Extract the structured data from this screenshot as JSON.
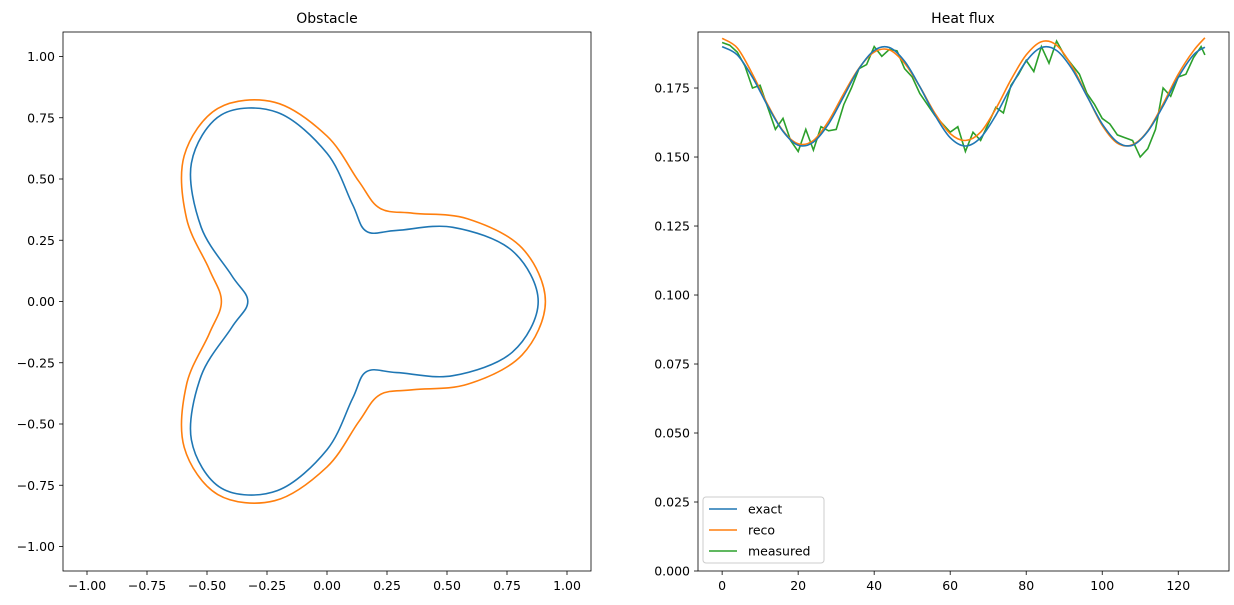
{
  "chart_data": [
    {
      "type": "line",
      "title": "Obstacle",
      "xlim": [
        -1.1,
        1.1
      ],
      "ylim": [
        -1.1,
        1.1
      ],
      "xticks": [
        -1.0,
        -0.75,
        -0.5,
        -0.25,
        0.0,
        0.25,
        0.5,
        0.75,
        1.0
      ],
      "yticks": [
        -1.0,
        -0.75,
        -0.5,
        -0.25,
        0.0,
        0.25,
        0.5,
        0.75,
        1.0
      ],
      "grid": false,
      "colors": [
        "#1f77b4",
        "#ff7f0e"
      ],
      "series": [
        {
          "x": [
            0.88,
            0.772,
            0.524,
            0.29,
            0.165,
            0.106,
            0.0,
            -0.207,
            -0.44,
            -0.565,
            -0.524,
            -0.397,
            -0.33,
            -0.397,
            -0.524,
            -0.565,
            -0.44,
            -0.207,
            0.0,
            0.106,
            0.165,
            0.29,
            0.524,
            0.772
          ],
          "y": [
            0.0,
            0.207,
            0.303,
            0.29,
            0.286,
            0.397,
            0.605,
            0.772,
            0.762,
            0.565,
            0.303,
            0.106,
            0.0,
            -0.106,
            -0.303,
            -0.565,
            -0.762,
            -0.772,
            -0.605,
            -0.397,
            -0.286,
            -0.29,
            -0.303,
            -0.207
          ]
        },
        {
          "x": [
            0.91,
            0.813,
            0.585,
            0.36,
            0.22,
            0.132,
            0.0,
            -0.218,
            -0.455,
            -0.595,
            -0.585,
            -0.491,
            -0.44,
            -0.491,
            -0.585,
            -0.595,
            -0.455,
            -0.218,
            0.0,
            0.132,
            0.22,
            0.36,
            0.585,
            0.813
          ],
          "y": [
            0.0,
            0.218,
            0.338,
            0.36,
            0.381,
            0.491,
            0.675,
            0.813,
            0.788,
            0.595,
            0.338,
            0.132,
            0.0,
            -0.132,
            -0.338,
            -0.595,
            -0.788,
            -0.813,
            -0.675,
            -0.491,
            -0.381,
            -0.36,
            -0.338,
            -0.218
          ]
        }
      ]
    },
    {
      "type": "line",
      "title": "Heat flux",
      "xlim": [
        -6.35,
        133.35
      ],
      "ylim": [
        0,
        0.1953
      ],
      "xticks": [
        0,
        20,
        40,
        60,
        80,
        100,
        120
      ],
      "yticks": [
        "0.000",
        "0.025",
        "0.050",
        "0.075",
        "0.100",
        "0.125",
        "0.150",
        "0.175"
      ],
      "grid": false,
      "legend": "lower-left",
      "series": [
        {
          "name": "exact",
          "color": "#1f77b4",
          "x": [
            0,
            4,
            8,
            12,
            16,
            20,
            24,
            28,
            32,
            36,
            40,
            44,
            48,
            52,
            56,
            60,
            64,
            68,
            72,
            76,
            80,
            84,
            88,
            92,
            96,
            100,
            104,
            108,
            112,
            116,
            120,
            124,
            127
          ],
          "y": [
            0.19,
            0.187,
            0.1789,
            0.1685,
            0.1593,
            0.1543,
            0.1554,
            0.162,
            0.172,
            0.182,
            0.1886,
            0.1897,
            0.1847,
            0.1755,
            0.1651,
            0.157,
            0.154,
            0.157,
            0.1651,
            0.1755,
            0.1847,
            0.1897,
            0.1886,
            0.182,
            0.172,
            0.162,
            0.1554,
            0.1543,
            0.1593,
            0.1685,
            0.1789,
            0.187,
            0.1898
          ]
        },
        {
          "name": "reco",
          "color": "#ff7f0e",
          "x": [
            0,
            4,
            8,
            12,
            16,
            20,
            24,
            28,
            32,
            36,
            40,
            44,
            48,
            52,
            56,
            60,
            64,
            68,
            72,
            76,
            80,
            84,
            88,
            92,
            96,
            100,
            104,
            108,
            112,
            116,
            120,
            124,
            127
          ],
          "y": [
            0.193,
            0.1895,
            0.18,
            0.169,
            0.1595,
            0.1548,
            0.156,
            0.163,
            0.173,
            0.1822,
            0.188,
            0.1888,
            0.184,
            0.1755,
            0.1658,
            0.1585,
            0.156,
            0.159,
            0.1675,
            0.178,
            0.187,
            0.1918,
            0.1905,
            0.183,
            0.1722,
            0.1615,
            0.155,
            0.1545,
            0.1595,
            0.1692,
            0.18,
            0.1885,
            0.1932
          ]
        },
        {
          "name": "measured",
          "color": "#2ca02c",
          "x": [
            0,
            2,
            4,
            6,
            8,
            10,
            12,
            14,
            16,
            18,
            20,
            22,
            24,
            26,
            28,
            30,
            32,
            34,
            36,
            38,
            40,
            42,
            44,
            46,
            48,
            50,
            52,
            54,
            56,
            58,
            60,
            62,
            64,
            66,
            68,
            70,
            72,
            74,
            76,
            78,
            80,
            82,
            84,
            86,
            88,
            90,
            92,
            94,
            96,
            98,
            100,
            102,
            104,
            106,
            108,
            110,
            112,
            114,
            116,
            118,
            120,
            122,
            124,
            126,
            127
          ],
          "y": [
            0.1915,
            0.1905,
            0.188,
            0.183,
            0.175,
            0.176,
            0.168,
            0.16,
            0.164,
            0.156,
            0.152,
            0.16,
            0.1525,
            0.161,
            0.1595,
            0.16,
            0.169,
            0.175,
            0.182,
            0.1835,
            0.19,
            0.1865,
            0.189,
            0.1885,
            0.182,
            0.179,
            0.173,
            0.169,
            0.165,
            0.162,
            0.159,
            0.161,
            0.152,
            0.159,
            0.156,
            0.162,
            0.168,
            0.166,
            0.176,
            0.18,
            0.185,
            0.181,
            0.19,
            0.184,
            0.192,
            0.187,
            0.1835,
            0.18,
            0.173,
            0.169,
            0.164,
            0.162,
            0.158,
            0.157,
            0.156,
            0.15,
            0.153,
            0.16,
            0.175,
            0.172,
            0.179,
            0.18,
            0.186,
            0.19,
            0.187
          ]
        }
      ]
    }
  ]
}
